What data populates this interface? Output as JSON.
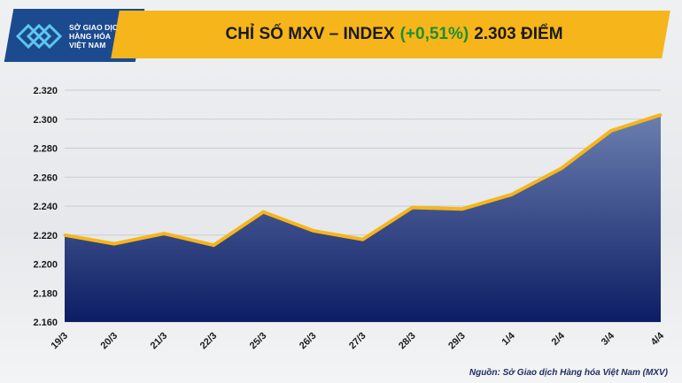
{
  "logo": {
    "line1": "SỞ GIAO DỊCH",
    "line2": "HÀNG HÓA",
    "line3": "VIỆT NAM",
    "icon": "mxv-logo-mark"
  },
  "header": {
    "prefix": "CHỈ SỐ MXV – INDEX",
    "change": "(+0,51%)",
    "suffix": "2.303 ĐIỂM"
  },
  "colors": {
    "banner": "#f6b51a",
    "area_top": "#6a7fb0",
    "area_bottom": "#0d1d63",
    "line": "#f6b51a",
    "change_text": "#1f8f2e",
    "logo_bg": "#1c4a8e"
  },
  "source": "Nguồn: Sở Giao dịch Hàng hóa Việt Nam (MXV)",
  "chart_data": {
    "type": "area",
    "categories": [
      "19/3",
      "20/3",
      "21/3",
      "22/3",
      "25/3",
      "26/3",
      "27/3",
      "28/3",
      "29/3",
      "1/4",
      "2/4",
      "3/4",
      "4/4"
    ],
    "values": [
      2220,
      2214,
      2221,
      2213,
      2236,
      2223,
      2217,
      2239,
      2238,
      2248,
      2266,
      2292,
      2303
    ],
    "title": "",
    "xlabel": "",
    "ylabel": "",
    "ylim": [
      2160,
      2320
    ],
    "yticks": [
      {
        "v": 2160,
        "label": "2.160"
      },
      {
        "v": 2180,
        "label": "2.180"
      },
      {
        "v": 2200,
        "label": "2.200"
      },
      {
        "v": 2220,
        "label": "2.220"
      },
      {
        "v": 2240,
        "label": "2.240"
      },
      {
        "v": 2260,
        "label": "2.260"
      },
      {
        "v": 2280,
        "label": "2.280"
      },
      {
        "v": 2300,
        "label": "2.300"
      },
      {
        "v": 2320,
        "label": "2.320"
      }
    ],
    "grid": true,
    "legend": "none"
  }
}
